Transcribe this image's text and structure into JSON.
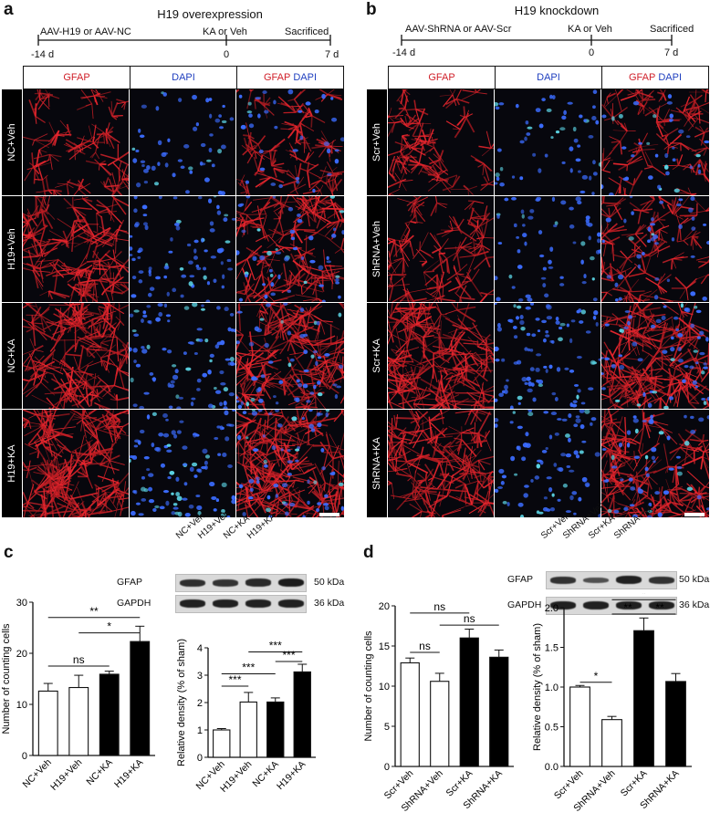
{
  "panels": {
    "a": {
      "letter": "a",
      "title": "H19 overexpression",
      "timeline": {
        "start_label": "AAV-H19 or AAV-NC",
        "mid_label": "KA or Veh",
        "end_label": "Sacrificed",
        "ticks": [
          "-14 d",
          "0",
          "7 d"
        ]
      },
      "columns": [
        "GFAP",
        "DAPI",
        "GFAP",
        "DAPI"
      ],
      "rows": [
        "NC+Veh",
        "H19+Veh",
        "NC+KA",
        "H19+KA"
      ]
    },
    "b": {
      "letter": "b",
      "title": "H19 knockdown",
      "timeline": {
        "start_label": "AAV-ShRNA or AAV-Scr",
        "mid_label": "KA or Veh",
        "end_label": "Sacrificed",
        "ticks": [
          "-14 d",
          "0",
          "7 d"
        ]
      },
      "columns": [
        "GFAP",
        "DAPI",
        "GFAP",
        "DAPI"
      ],
      "rows": [
        "Scr+Veh",
        "ShRNA+Veh",
        "Scr+KA",
        "ShRNA+KA"
      ]
    },
    "c": {
      "letter": "c",
      "blot": {
        "lanes": [
          "NC+Veh",
          "H19+Veh",
          "NC+KA",
          "H19+KA"
        ],
        "rows": [
          {
            "protein": "GFAP",
            "size": "50 kDa",
            "intensity": [
              0.8,
              0.75,
              0.85,
              1.0
            ]
          },
          {
            "protein": "GAPDH",
            "size": "36 kDa",
            "intensity": [
              0.95,
              0.95,
              0.95,
              0.95
            ]
          }
        ]
      }
    },
    "d": {
      "letter": "d",
      "blot": {
        "lanes": [
          "Scr+Veh",
          "ShRNA+Veh",
          "Scr+KA",
          "ShRNA+KA"
        ],
        "rows": [
          {
            "protein": "GFAP",
            "size": "50 kDa",
            "intensity": [
              0.75,
              0.45,
              0.95,
              0.75
            ]
          },
          {
            "protein": "GAPDH",
            "size": "36 kDa",
            "intensity": [
              0.95,
              0.95,
              0.95,
              0.95
            ]
          }
        ]
      }
    }
  },
  "colors": {
    "red": "#d0202a",
    "blue": "#1f3fbf",
    "bar_black": "#000000",
    "bar_white": "#ffffff"
  },
  "chart_data": [
    {
      "type": "bar",
      "panel": "c",
      "categories": [
        "NC+Veh",
        "H19+Veh",
        "NC+KA",
        "H19+KA"
      ],
      "values": [
        12.6,
        13.3,
        15.9,
        22.3
      ],
      "errors": [
        1.5,
        2.4,
        0.6,
        3.0
      ],
      "fills": [
        "white",
        "white",
        "black",
        "black"
      ],
      "ylabel": "Number of counting cells",
      "ylim": [
        0,
        30
      ],
      "yticks": [
        0,
        10,
        20,
        30
      ],
      "significance": [
        {
          "from": 0,
          "to": 2,
          "label": "ns",
          "level": 17.5
        },
        {
          "from": 1,
          "to": 3,
          "label": "*",
          "level": 24
        },
        {
          "from": 0,
          "to": 3,
          "label": "**",
          "level": 27
        }
      ]
    },
    {
      "type": "bar",
      "panel": "c",
      "categories": [
        "NC+Veh",
        "H19+Veh",
        "NC+KA",
        "H19+KA"
      ],
      "values": [
        1.0,
        2.02,
        2.02,
        3.12
      ],
      "errors": [
        0.05,
        0.35,
        0.15,
        0.28
      ],
      "fills": [
        "white",
        "white",
        "black",
        "black"
      ],
      "ylabel": "Relative density (% of sham)",
      "ylim": [
        0,
        4
      ],
      "yticks": [
        0,
        1,
        2,
        3,
        4
      ],
      "significance": [
        {
          "from": 0,
          "to": 1,
          "label": "***",
          "level": 2.6
        },
        {
          "from": 0,
          "to": 2,
          "label": "***",
          "level": 3.05
        },
        {
          "from": 2,
          "to": 3,
          "label": "***",
          "level": 3.5
        },
        {
          "from": 1,
          "to": 3,
          "label": "***",
          "level": 3.85
        }
      ]
    },
    {
      "type": "bar",
      "panel": "d",
      "categories": [
        "Scr+Veh",
        "ShRNA+Veh",
        "Scr+KA",
        "ShRNA+KA"
      ],
      "values": [
        12.9,
        10.6,
        16.0,
        13.6
      ],
      "errors": [
        0.6,
        1.0,
        1.1,
        0.9
      ],
      "fills": [
        "white",
        "white",
        "black",
        "black"
      ],
      "ylabel": "Number of counting cells",
      "ylim": [
        0,
        20
      ],
      "yticks": [
        0,
        5,
        10,
        15,
        20
      ],
      "significance": [
        {
          "from": 0,
          "to": 1,
          "label": "ns",
          "level": 14.2
        },
        {
          "from": 1,
          "to": 3,
          "label": "ns",
          "level": 17.6
        },
        {
          "from": 0,
          "to": 2,
          "label": "ns",
          "level": 19.1
        }
      ]
    },
    {
      "type": "bar",
      "panel": "d",
      "categories": [
        "Scr+Veh",
        "ShRNA+Veh",
        "Scr+KA",
        "ShRNA+KA"
      ],
      "values": [
        1.0,
        0.59,
        1.71,
        1.07
      ],
      "errors": [
        0.02,
        0.04,
        0.16,
        0.1
      ],
      "fills": [
        "white",
        "white",
        "black",
        "black"
      ],
      "ylabel": "Relative density (% of sham)",
      "ylim": [
        0,
        2.0
      ],
      "yticks": [
        0.0,
        0.5,
        1.0,
        1.5,
        2.0
      ],
      "ytick_labels": [
        "0.0",
        "0.5",
        "1.0",
        "1.5",
        "2.0"
      ],
      "significance": [
        {
          "from": 0,
          "to": 1,
          "label": "*",
          "level": 1.06
        },
        {
          "from": 1,
          "to": 2,
          "label": "**",
          "level": 1.92
        },
        {
          "from": 2,
          "to": 3,
          "label": "**",
          "level": 1.92
        },
        {
          "from": 1,
          "to": 3,
          "label": "*",
          "level": 2.1
        }
      ]
    }
  ]
}
